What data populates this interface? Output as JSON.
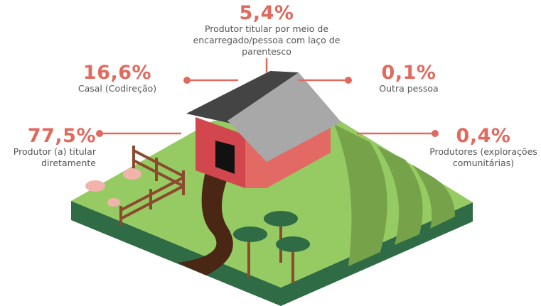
{
  "items": [
    {
      "value": "77,5%",
      "label": "Produtor (a) titular diretamente"
    },
    {
      "value": "16,6%",
      "label": "Casal (Codireção)"
    },
    {
      "value": "5,4%",
      "label": "Produtor titular por meio de encarregado/pessoa com laço de parentesco"
    },
    {
      "value": "0,1%",
      "label": "Outra pessoa"
    },
    {
      "value": "0,4%",
      "label": "Produtores (explorações comunitárias)"
    }
  ]
}
